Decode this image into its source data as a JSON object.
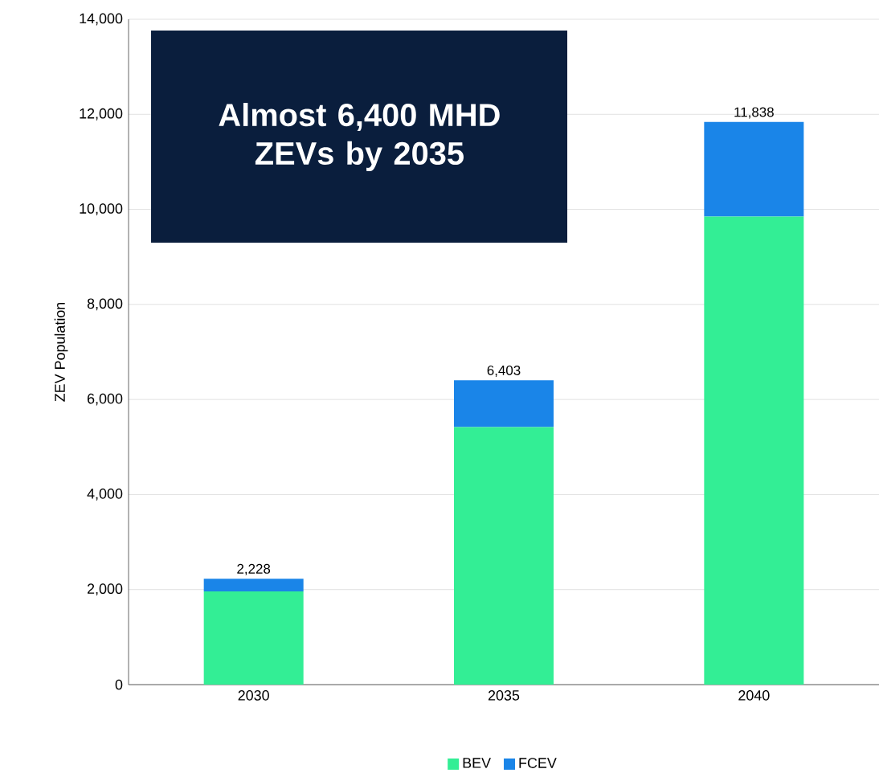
{
  "chart_data": {
    "type": "bar",
    "title": "Almost 6,400 MHD ZEVs by 2035",
    "ylabel": "ZEV Population",
    "categories": [
      "2030",
      "2035",
      "2040"
    ],
    "series": [
      {
        "name": "BEV",
        "color": "#33ee95",
        "values": [
          1960,
          5420,
          9850
        ]
      },
      {
        "name": "FCEV",
        "color": "#1a85e8",
        "values": [
          268,
          983,
          1988
        ]
      }
    ],
    "stacked": true,
    "totals": [
      "2,228",
      "6,403",
      "11,838"
    ],
    "ylim": [
      0,
      14000
    ],
    "yticks": [
      {
        "value": 0,
        "label": "0"
      },
      {
        "value": 2000,
        "label": "2,000"
      },
      {
        "value": 4000,
        "label": "4,000"
      },
      {
        "value": 6000,
        "label": "6,000"
      },
      {
        "value": 8000,
        "label": "8,000"
      },
      {
        "value": 10000,
        "label": "10,000"
      },
      {
        "value": 12000,
        "label": "12,000"
      },
      {
        "value": 14000,
        "label": "14,000"
      }
    ],
    "grid": "y",
    "legend": "bottom"
  }
}
